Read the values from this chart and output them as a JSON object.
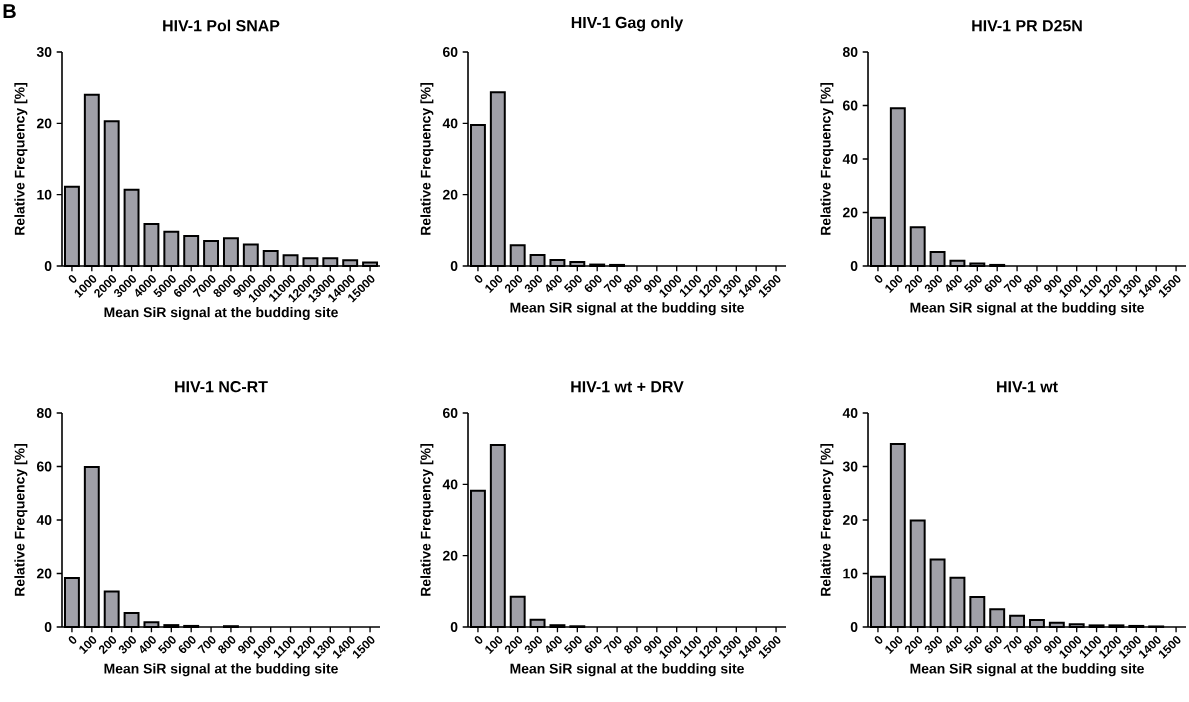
{
  "chart_data": [
    {
      "type": "bar",
      "title": "HIV-1 Pol SNAP",
      "xlabel": "Mean SiR signal at the budding site",
      "ylabel": "Relative Frequency [%]",
      "annotations": [
        "B"
      ],
      "color": "#a0a0a8",
      "categories": [
        "0",
        "1000",
        "2000",
        "3000",
        "4000",
        "5000",
        "6000",
        "7000",
        "8000",
        "9000",
        "10000",
        "11000",
        "12000",
        "13000",
        "14000",
        "15000"
      ],
      "values": [
        11.1,
        24.0,
        20.3,
        10.7,
        5.9,
        4.8,
        4.2,
        3.5,
        3.9,
        3.0,
        2.1,
        1.5,
        1.1,
        1.1,
        0.8,
        0.5
      ],
      "ylim": [
        0,
        30
      ],
      "yticks": [
        0,
        10,
        20,
        30
      ]
    },
    {
      "type": "bar",
      "title": "HIV-1 Gag only",
      "xlabel": "Mean SiR signal at the budding site",
      "ylabel": "Relative Frequency [%]",
      "color": "#a0a0a8",
      "categories": [
        "0",
        "100",
        "200",
        "300",
        "400",
        "500",
        "600",
        "700",
        "800",
        "900",
        "1000",
        "1100",
        "1200",
        "1300",
        "1400",
        "1500"
      ],
      "values": [
        39.5,
        48.7,
        5.8,
        3.1,
        1.7,
        1.1,
        0.4,
        0.3,
        0,
        0,
        0,
        0,
        0,
        0,
        0,
        0
      ],
      "ylim": [
        0,
        60
      ],
      "yticks": [
        0,
        20,
        40,
        60
      ]
    },
    {
      "type": "bar",
      "title": "HIV-1 PR D25N",
      "xlabel": "Mean SiR signal at the budding site",
      "ylabel": "Relative Frequency [%]",
      "color": "#a0a0a8",
      "categories": [
        "0",
        "100",
        "200",
        "300",
        "400",
        "500",
        "600",
        "700",
        "800",
        "900",
        "1000",
        "1100",
        "1200",
        "1300",
        "1400",
        "1500"
      ],
      "values": [
        18.0,
        59.0,
        14.5,
        5.2,
        2.0,
        0.9,
        0.4,
        0,
        0,
        0,
        0,
        0,
        0,
        0,
        0,
        0
      ],
      "ylim": [
        0,
        80
      ],
      "yticks": [
        0,
        20,
        40,
        60,
        80
      ]
    },
    {
      "type": "bar",
      "title": "HIV-1 NC-RT",
      "xlabel": "Mean SiR signal at the budding site",
      "ylabel": "Relative Frequency [%]",
      "color": "#a0a0a8",
      "categories": [
        "0",
        "100",
        "200",
        "300",
        "400",
        "500",
        "600",
        "700",
        "800",
        "900",
        "1000",
        "1100",
        "1200",
        "1300",
        "1400",
        "1500"
      ],
      "values": [
        18.3,
        59.8,
        13.3,
        5.2,
        1.8,
        0.7,
        0.4,
        0,
        0.3,
        0,
        0,
        0,
        0,
        0,
        0,
        0
      ],
      "ylim": [
        0,
        80
      ],
      "yticks": [
        0,
        20,
        40,
        60,
        80
      ]
    },
    {
      "type": "bar",
      "title": "HIV-1 wt + DRV",
      "xlabel": "Mean SiR signal at the budding site",
      "ylabel": "Relative Frequency [%]",
      "color": "#a0a0a8",
      "categories": [
        "0",
        "100",
        "200",
        "300",
        "400",
        "500",
        "600",
        "700",
        "800",
        "900",
        "1000",
        "1100",
        "1200",
        "1300",
        "1400",
        "1500"
      ],
      "values": [
        38.2,
        51.0,
        8.5,
        2.0,
        0.5,
        0.2,
        0,
        0,
        0,
        0,
        0,
        0,
        0,
        0,
        0,
        0
      ],
      "ylim": [
        0,
        60
      ],
      "yticks": [
        0,
        20,
        40,
        60
      ]
    },
    {
      "type": "bar",
      "title": "HIV-1 wt",
      "xlabel": "Mean SiR signal at the budding site",
      "ylabel": "Relative Frequency [%]",
      "color": "#a0a0a8",
      "categories": [
        "0",
        "100",
        "200",
        "300",
        "400",
        "500",
        "600",
        "700",
        "800",
        "900",
        "1000",
        "1100",
        "1200",
        "1300",
        "1400",
        "1500"
      ],
      "values": [
        9.4,
        34.2,
        19.9,
        12.6,
        9.2,
        5.6,
        3.3,
        2.1,
        1.3,
        0.8,
        0.5,
        0.3,
        0.3,
        0.2,
        0.1,
        0
      ],
      "ylim": [
        0,
        40
      ],
      "yticks": [
        0,
        10,
        20,
        30,
        40
      ]
    }
  ]
}
